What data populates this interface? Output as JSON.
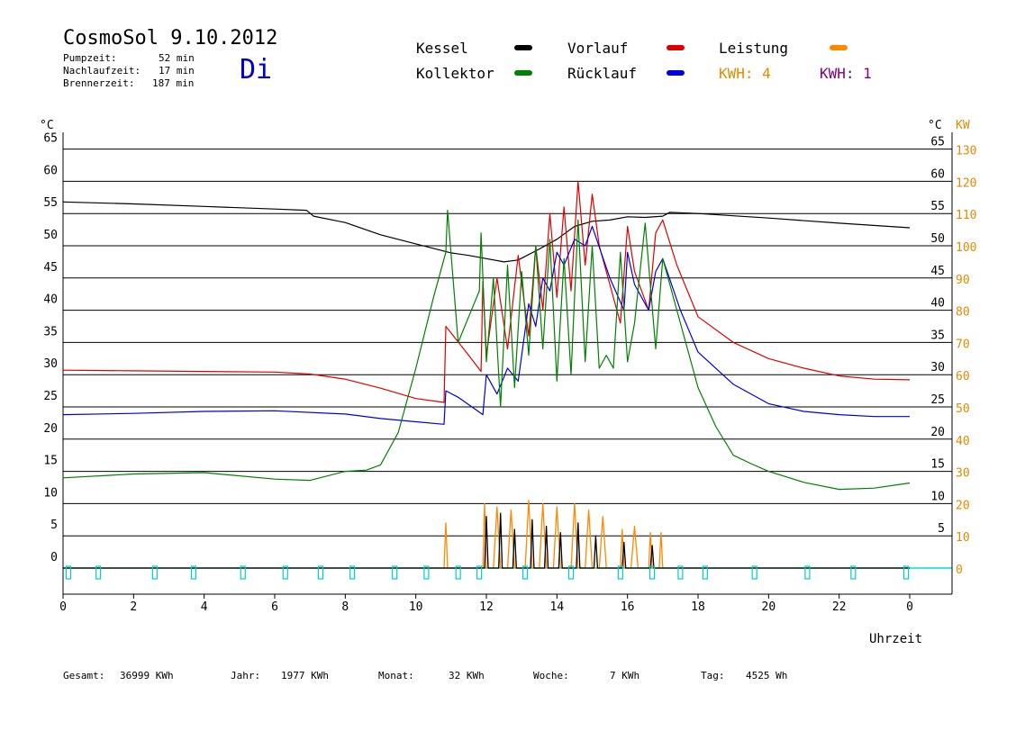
{
  "header": {
    "title": "CosmoSol 9.10.2012",
    "day": "Di",
    "pumpzeit_label": "Pumpzeit:",
    "pumpzeit_value": "52 min",
    "nachlaufzeit_label": "Nachlaufzeit:",
    "nachlaufzeit_value": "17 min",
    "brennerzeit_label": "Brennerzeit:",
    "brennerzeit_value": "187 min"
  },
  "legend": {
    "kessel": {
      "label": "Kessel",
      "color": "#000000"
    },
    "vorlauf": {
      "label": "Vorlauf",
      "color": "#dd0000"
    },
    "leistung": {
      "label": "Leistung",
      "color": "#ff8800"
    },
    "kollektor": {
      "label": "Kollektor",
      "color": "#008000"
    },
    "ruecklauf": {
      "label": "Rücklauf",
      "color": "#0000dd"
    },
    "kwh1": {
      "label": "KWH: 4",
      "color": "#e08a00"
    },
    "kwh2": {
      "label": "KWH: 1",
      "color": "#800080"
    }
  },
  "footer": {
    "gesamt_label": "Gesamt:",
    "gesamt_value": "36999 KWh",
    "jahr_label": "Jahr:",
    "jahr_value": "1977 KWh",
    "monat_label": "Monat:",
    "monat_value": "32 KWh",
    "woche_label": "Woche:",
    "woche_value": "7 KWh",
    "tag_label": "Tag:",
    "tag_value": "4525 Wh"
  },
  "chart_data": {
    "type": "line",
    "title": "CosmoSol 9.10.2012",
    "xlabel": "Uhrzeit",
    "ylabel_left": "°C",
    "ylabel_right": "°C",
    "ylabel_right2": "KW",
    "xlim": [
      0,
      24
    ],
    "ylim_left": [
      0,
      65
    ],
    "ylim_right2": [
      0,
      130
    ],
    "x_ticks": [
      "0",
      "2",
      "4",
      "6",
      "8",
      "10",
      "12",
      "14",
      "16",
      "18",
      "20",
      "22",
      "0"
    ],
    "y_ticks_left": [
      "0",
      "5",
      "10",
      "15",
      "20",
      "25",
      "30",
      "35",
      "40",
      "45",
      "50",
      "55",
      "60",
      "65"
    ],
    "y_ticks_right": [
      "5",
      "10",
      "15",
      "20",
      "25",
      "30",
      "35",
      "40",
      "45",
      "50",
      "55",
      "60",
      "65"
    ],
    "y_ticks_right2": [
      "0",
      "10",
      "20",
      "30",
      "40",
      "50",
      "60",
      "70",
      "80",
      "90",
      "100",
      "110",
      "120",
      "130"
    ],
    "grid": true,
    "series": [
      {
        "name": "Kessel",
        "color": "#000000",
        "x": [
          0,
          2,
          4,
          6,
          6.9,
          7.1,
          8,
          9,
          10,
          11,
          11.5,
          12,
          12.5,
          12.9,
          13.5,
          14,
          14.5,
          15,
          15.5,
          16,
          16.5,
          17,
          17.2,
          18,
          20,
          22,
          24
        ],
        "y": [
          56.8,
          56.5,
          56.1,
          55.7,
          55.5,
          54.6,
          53.6,
          51.7,
          50.3,
          48.9,
          48.5,
          48.0,
          47.5,
          47.8,
          49.5,
          51.0,
          53.0,
          53.8,
          54.0,
          54.5,
          54.4,
          54.6,
          55.2,
          55.0,
          54.3,
          53.5,
          52.8
        ]
      },
      {
        "name": "Vorlauf",
        "color": "#dd0000",
        "x": [
          0,
          2,
          4,
          6,
          7,
          8,
          9,
          10,
          10.8,
          10.85,
          11.5,
          11.85,
          11.9,
          12.0,
          12.3,
          12.6,
          12.9,
          13.2,
          13.4,
          13.6,
          13.8,
          14.0,
          14.2,
          14.4,
          14.6,
          14.8,
          15.0,
          15.2,
          15.5,
          15.8,
          16.0,
          16.2,
          16.6,
          16.8,
          17.0,
          17.4,
          18,
          19,
          20,
          21,
          22,
          23,
          24
        ],
        "y": [
          30.7,
          30.6,
          30.5,
          30.4,
          30.1,
          29.3,
          27.9,
          26.3,
          25.7,
          37.5,
          33.0,
          30.5,
          44.5,
          33.0,
          45.0,
          34.0,
          48.5,
          36.0,
          50.0,
          40.0,
          55.0,
          42.0,
          56.0,
          43.0,
          60.0,
          47.0,
          58.0,
          50.0,
          44.0,
          38.0,
          53.0,
          46.0,
          40.0,
          52.0,
          54.0,
          47.0,
          39.0,
          35.0,
          32.5,
          31.0,
          29.8,
          29.3,
          29.2
        ]
      },
      {
        "name": "Rücklauf",
        "color": "#0000dd",
        "x": [
          0,
          2,
          4,
          6,
          8,
          9,
          10,
          10.8,
          10.85,
          11.2,
          11.9,
          12.0,
          12.3,
          12.6,
          12.9,
          13.2,
          13.4,
          13.6,
          13.8,
          14.0,
          14.2,
          14.5,
          14.8,
          15.0,
          15.5,
          15.9,
          16.0,
          16.2,
          16.6,
          16.8,
          17.0,
          17.5,
          18,
          19,
          20,
          21,
          22,
          23,
          24
        ],
        "y": [
          23.8,
          24.0,
          24.3,
          24.4,
          23.9,
          23.2,
          22.7,
          22.3,
          27.5,
          26.5,
          23.8,
          30.0,
          27.0,
          31.0,
          29.0,
          41.0,
          37.5,
          45.0,
          43.0,
          49.0,
          47.0,
          51.0,
          50.0,
          53.0,
          45.0,
          40.0,
          49.0,
          44.0,
          40.0,
          46.0,
          48.0,
          40.0,
          33.5,
          28.5,
          25.5,
          24.3,
          23.8,
          23.5,
          23.5
        ]
      },
      {
        "name": "Kollektor",
        "color": "#008000",
        "x": [
          0,
          2,
          4,
          6,
          7,
          8,
          8.6,
          9,
          9.5,
          10,
          10.5,
          10.85,
          10.9,
          11.2,
          11.5,
          11.8,
          11.85,
          12.0,
          12.2,
          12.4,
          12.6,
          12.8,
          13.0,
          13.2,
          13.4,
          13.6,
          13.8,
          14.0,
          14.2,
          14.4,
          14.6,
          14.8,
          15.0,
          15.2,
          15.4,
          15.6,
          15.8,
          16.0,
          16.2,
          16.5,
          16.8,
          17.0,
          17.2,
          17.5,
          18,
          18.5,
          19,
          19.5,
          20,
          21,
          22,
          23,
          24
        ],
        "y": [
          14.0,
          14.6,
          14.8,
          13.8,
          13.6,
          15.0,
          15.2,
          16.0,
          21.0,
          31.0,
          42.0,
          49.0,
          55.5,
          35.0,
          39.0,
          43.0,
          52.0,
          32.0,
          45.0,
          25.0,
          47.0,
          28.0,
          46.0,
          33.0,
          50.0,
          34.0,
          51.0,
          29.0,
          48.0,
          30.0,
          54.0,
          32.0,
          50.0,
          31.0,
          33.0,
          31.0,
          49.0,
          32.0,
          38.0,
          53.5,
          34.0,
          48.0,
          44.0,
          38.0,
          28.0,
          22.0,
          17.5,
          16.2,
          15.0,
          13.3,
          12.2,
          12.4,
          13.2
        ]
      },
      {
        "name": "Leistung",
        "color": "#ff8800",
        "x": [
          0,
          10.8,
          10.85,
          10.9,
          11.9,
          11.95,
          12.0,
          12.2,
          12.3,
          12.4,
          12.6,
          12.7,
          12.8,
          13.1,
          13.2,
          13.3,
          13.5,
          13.6,
          13.7,
          13.9,
          14.0,
          14.1,
          14.4,
          14.5,
          14.6,
          14.8,
          14.9,
          15.0,
          15.2,
          15.3,
          15.4,
          15.8,
          15.85,
          15.9,
          16.1,
          16.2,
          16.3,
          16.6,
          16.65,
          16.7,
          16.9,
          16.95,
          17.0,
          17.2,
          24
        ],
        "y": [
          0,
          0,
          7.0,
          0,
          0,
          10.0,
          0,
          0,
          9.5,
          0,
          0,
          9.0,
          0,
          0,
          10.5,
          0,
          0,
          10.0,
          0,
          0,
          9.5,
          0,
          0,
          10.0,
          0,
          0,
          9.0,
          0,
          0,
          8.0,
          0,
          0,
          6.0,
          0,
          0,
          6.5,
          0,
          0,
          5.5,
          0,
          0,
          5.5,
          0,
          0,
          0
        ]
      },
      {
        "name": "Kessel-Impuls",
        "color": "#000000",
        "x": [
          0,
          11.95,
          12.0,
          12.05,
          12.35,
          12.4,
          12.45,
          12.75,
          12.8,
          12.85,
          13.25,
          13.3,
          13.35,
          13.65,
          13.7,
          13.75,
          14.05,
          14.1,
          14.15,
          14.55,
          14.6,
          14.65,
          15.05,
          15.1,
          15.15,
          15.85,
          15.9,
          15.95,
          16.65,
          16.7,
          16.75,
          24
        ],
        "y": [
          0,
          0,
          8.0,
          0,
          0,
          8.5,
          0,
          0,
          6.0,
          0,
          0,
          7.5,
          0,
          0,
          6.5,
          0,
          0,
          5.5,
          0,
          0,
          7.0,
          0,
          0,
          5.0,
          0,
          0,
          4.0,
          0,
          0,
          3.5,
          0,
          0
        ]
      }
    ],
    "pump_markers_h": [
      0.15,
      1.0,
      2.6,
      3.7,
      5.1,
      6.3,
      7.3,
      8.2,
      9.4,
      10.3,
      11.2,
      11.8,
      13.1,
      14.4,
      15.8,
      16.7,
      17.5,
      18.2,
      19.6,
      21.1,
      22.4,
      23.9
    ]
  }
}
